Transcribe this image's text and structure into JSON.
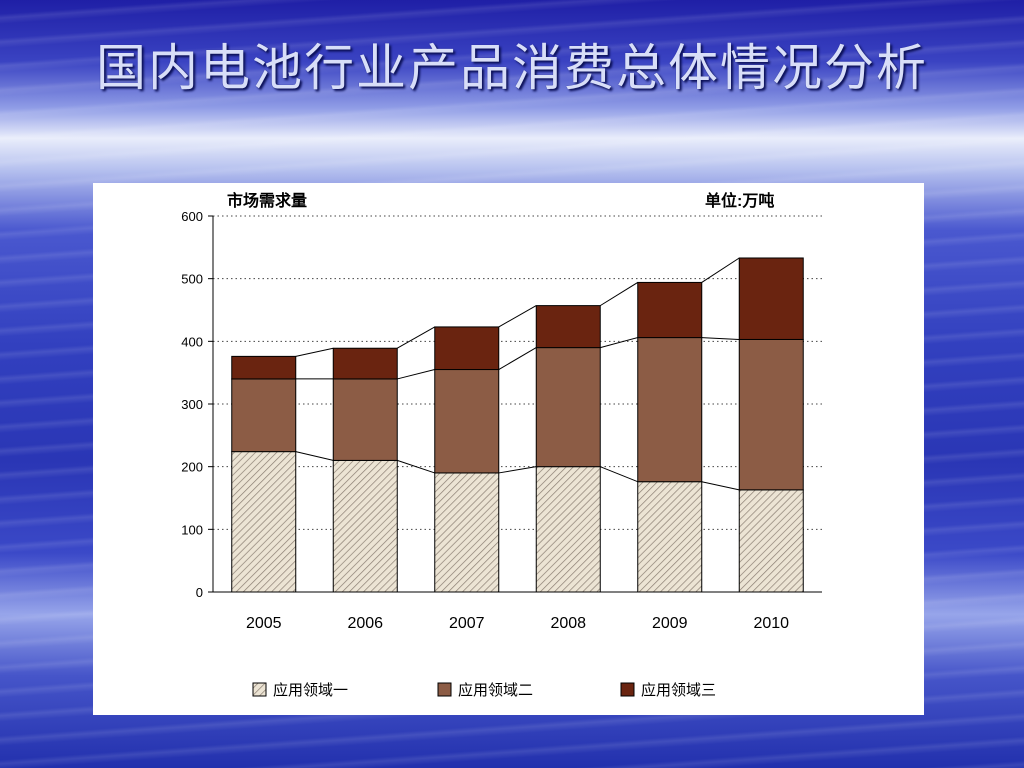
{
  "slide": {
    "title": "国内电池行业产品消费总体情况分析"
  },
  "chart_data": {
    "type": "bar",
    "stacked": true,
    "title": "市场需求量",
    "unit_label": "单位:万吨",
    "categories": [
      "2005",
      "2006",
      "2007",
      "2008",
      "2009",
      "2010"
    ],
    "series": [
      {
        "name": "应用领域一",
        "values": [
          224,
          210,
          190,
          200,
          176,
          163
        ],
        "color": "#e2d8c6",
        "pattern": "hatched"
      },
      {
        "name": "应用领域二",
        "values": [
          116,
          130,
          165,
          190,
          230,
          240
        ],
        "color": "#8c5c45"
      },
      {
        "name": "应用领域三",
        "values": [
          36,
          49,
          68,
          67,
          88,
          130
        ],
        "color": "#6a2410"
      }
    ],
    "ylim": [
      0,
      600
    ],
    "yticks": [
      0,
      100,
      200,
      300,
      400,
      500,
      600
    ],
    "grid": "dotted-horizontal",
    "series_lines": true,
    "legend_position": "bottom"
  }
}
